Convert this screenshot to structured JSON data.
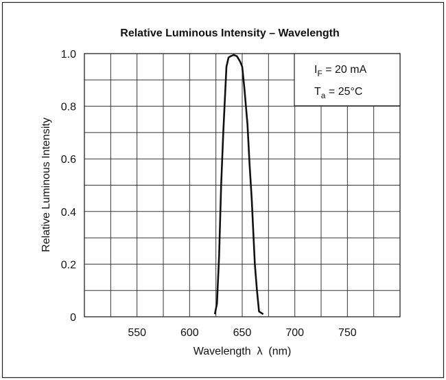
{
  "chart_data": {
    "type": "line",
    "title": "Relative Luminous Intensity – Wavelength",
    "xlabel": "Wavelength  λ  (nm)",
    "ylabel": "Relative Luminous Intensity",
    "xlim": [
      500,
      800
    ],
    "ylim": [
      0,
      1.0
    ],
    "x_ticks": [
      550,
      600,
      650,
      700,
      750
    ],
    "y_ticks": [
      "0",
      "0.2",
      "0.4",
      "0.6",
      "0.8",
      "1.0"
    ],
    "grid": true,
    "series": [
      {
        "x": [
          624,
          626,
          628,
          630,
          632,
          635,
          637,
          639,
          642,
          645,
          648,
          650,
          652,
          655,
          657,
          659,
          662,
          664,
          666,
          670
        ],
        "values": [
          0.01,
          0.05,
          0.23,
          0.5,
          0.7,
          0.95,
          0.985,
          0.99,
          0.995,
          0.99,
          0.97,
          0.95,
          0.87,
          0.73,
          0.58,
          0.45,
          0.2,
          0.1,
          0.02,
          0.01
        ]
      }
    ],
    "conditions": {
      "if_main": "I",
      "if_sub": "F",
      "if_value": " = 20 mA",
      "ta_main": "T",
      "ta_sub": "a",
      "ta_value": " = 25°C"
    }
  }
}
